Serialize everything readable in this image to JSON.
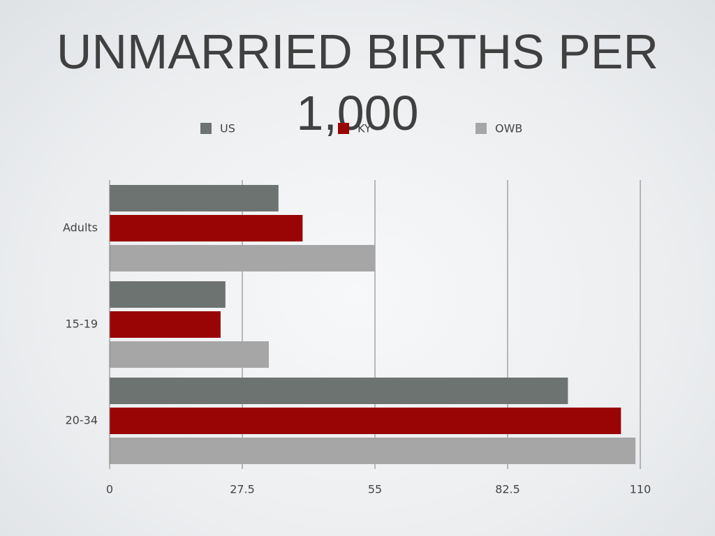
{
  "chart_data": {
    "type": "bar",
    "orientation": "horizontal",
    "title": "UNMARRIED BIRTHS PER 1,000",
    "categories": [
      "Adults",
      "15-19",
      "20-34"
    ],
    "series": [
      {
        "name": "US",
        "color": "#6d7370",
        "values": [
          35,
          24,
          95
        ]
      },
      {
        "name": "KY",
        "color": "#990505",
        "values": [
          40,
          23,
          106
        ]
      },
      {
        "name": "OWB",
        "color": "#a6a6a6",
        "values": [
          55,
          33,
          109
        ]
      }
    ],
    "xlim": [
      0,
      110
    ],
    "xticks": [
      0,
      27.5,
      55,
      82.5,
      110
    ],
    "grid": true,
    "legend": "top"
  }
}
